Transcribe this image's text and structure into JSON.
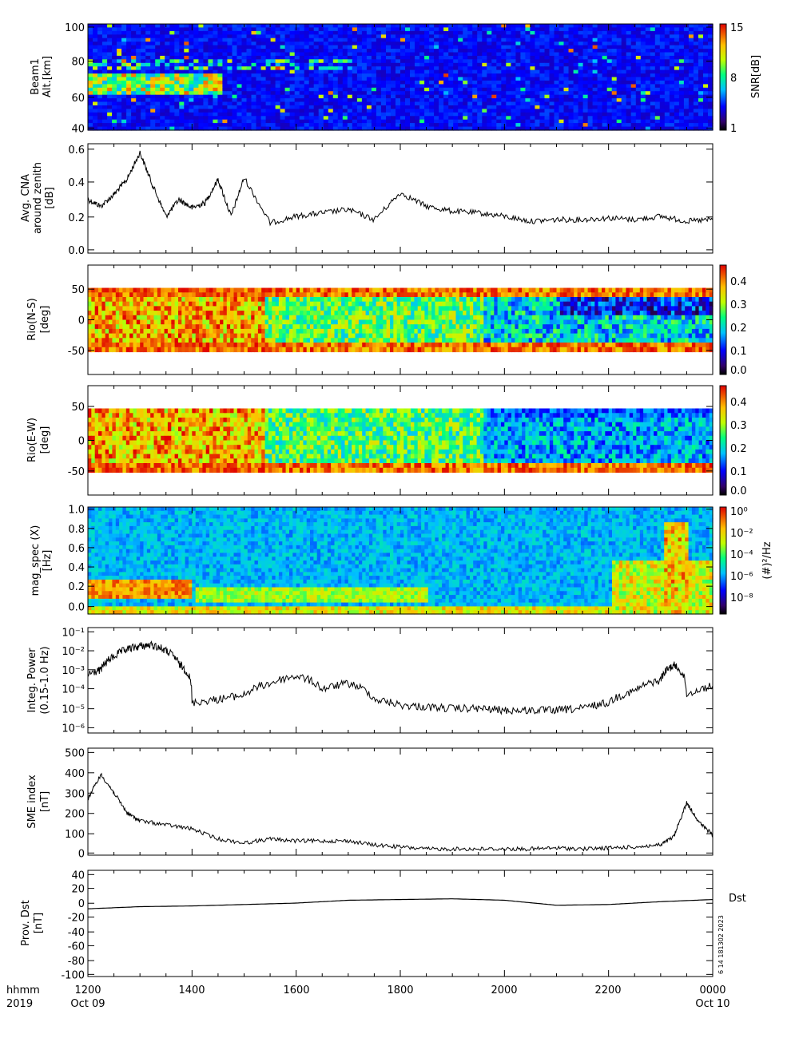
{
  "footer": {
    "time_label": "hhmm",
    "year_label": "2019",
    "start_date": "Oct 09",
    "end_date": "Oct 10",
    "x_ticks": [
      "1200",
      "1400",
      "1600",
      "1800",
      "2000",
      "2200",
      "0000"
    ],
    "stamp": "6 14 181302 2023"
  },
  "chart_data": [
    {
      "id": "beam1",
      "type": "heatmap",
      "ylabel": "Beam1",
      "ylabel2": "Alt.[km]",
      "ylim": [
        40,
        100
      ],
      "yticks": [
        "100",
        "80",
        "60",
        "40"
      ],
      "colorbar_label": "SNR[dB]",
      "colorbar_ticks": [
        "15",
        "8",
        "1"
      ],
      "clim": [
        1,
        15
      ]
    },
    {
      "id": "cna",
      "type": "line",
      "ylabel": "Avg. CNA",
      "ylabel2": "around zenith",
      "ylabel3": "[dB]",
      "ylim": [
        0,
        0.6
      ],
      "yticks": [
        "0.6",
        "0.4",
        "0.2",
        "0.0"
      ],
      "x_hours": [
        0,
        0.25,
        0.5,
        0.75,
        1.0,
        1.25,
        1.5,
        1.75,
        2.0,
        2.25,
        2.5,
        2.75,
        3.0,
        3.5,
        4.0,
        4.5,
        5.0,
        5.5,
        6.0,
        6.5,
        7.0,
        7.5,
        8.0,
        8.5,
        9.0,
        9.5,
        10.0,
        10.5,
        11.0,
        11.5,
        12.0
      ],
      "values": [
        0.3,
        0.26,
        0.33,
        0.42,
        0.58,
        0.38,
        0.2,
        0.3,
        0.25,
        0.28,
        0.42,
        0.2,
        0.43,
        0.16,
        0.2,
        0.22,
        0.24,
        0.18,
        0.34,
        0.26,
        0.23,
        0.22,
        0.2,
        0.17,
        0.18,
        0.18,
        0.19,
        0.18,
        0.2,
        0.17,
        0.18
      ]
    },
    {
      "id": "rio_ns",
      "type": "heatmap",
      "ylabel": "Rio(N-S)",
      "ylabel2": "[deg]",
      "ylim": [
        -90,
        90
      ],
      "yticks": [
        "50",
        "0",
        "-50"
      ],
      "colorbar_ticks": [
        "0.4",
        "0.3",
        "0.2",
        "0.1",
        "0.0"
      ],
      "clim": [
        0,
        0.45
      ]
    },
    {
      "id": "rio_ew",
      "type": "heatmap",
      "ylabel": "Rio(E-W)",
      "ylabel2": "[deg]",
      "ylim": [
        -90,
        90
      ],
      "yticks": [
        "50",
        "0",
        "-50"
      ],
      "colorbar_ticks": [
        "0.4",
        "0.3",
        "0.2",
        "0.1",
        "0.0"
      ],
      "clim": [
        0,
        0.45
      ]
    },
    {
      "id": "magspec",
      "type": "heatmap",
      "ylabel": "mag_spec (X)",
      "ylabel2": "[Hz]",
      "ylim": [
        0,
        1.0
      ],
      "yticks": [
        "1.0",
        "0.8",
        "0.6",
        "0.4",
        "0.2",
        "0.0"
      ],
      "colorbar_label": "(#)²/Hz",
      "colorbar_ticks": [
        "10⁰",
        "10⁻²",
        "10⁻⁴",
        "10⁻⁶",
        "10⁻⁸"
      ]
    },
    {
      "id": "power",
      "type": "line",
      "ylabel": "Integ. Power",
      "ylabel2": "(0.15-1.0 Hz)",
      "yscale": "log",
      "ylim": [
        1e-06,
        0.1
      ],
      "yticks": [
        "10⁻¹",
        "10⁻²",
        "10⁻³",
        "10⁻⁴",
        "10⁻⁵",
        "10⁻⁶"
      ],
      "x_hours": [
        0,
        0.25,
        0.5,
        0.75,
        1.0,
        1.25,
        1.5,
        1.75,
        2.0,
        2.5,
        3.0,
        3.5,
        4.0,
        4.5,
        5.0,
        5.5,
        6.0,
        6.5,
        7.0,
        7.5,
        8.0,
        8.5,
        9.0,
        9.5,
        10.0,
        10.5,
        11.0,
        11.25,
        11.5,
        12.0
      ],
      "values": [
        0.0006,
        0.001,
        0.005,
        0.012,
        0.018,
        0.02,
        0.01,
        0.002,
        2e-05,
        3e-05,
        5e-05,
        0.0002,
        0.0005,
        0.0001,
        0.0002,
        3e-05,
        1.5e-05,
        1.2e-05,
        1e-05,
        1e-05,
        8e-06,
        8e-06,
        8e-06,
        1e-05,
        2e-05,
        8e-05,
        0.0003,
        0.0018,
        5e-05,
        0.00015
      ]
    },
    {
      "id": "sme",
      "type": "line",
      "ylabel": "SME index",
      "ylabel2": "[nT]",
      "ylim": [
        0,
        500
      ],
      "yticks": [
        "500",
        "400",
        "300",
        "200",
        "100",
        "0"
      ],
      "x_hours": [
        0,
        0.25,
        0.5,
        0.75,
        1.0,
        1.5,
        2.0,
        2.5,
        3.0,
        3.5,
        4.0,
        4.5,
        5.0,
        5.5,
        6.0,
        6.5,
        7.0,
        7.5,
        8.0,
        8.5,
        9.0,
        9.5,
        10.0,
        10.5,
        11.0,
        11.25,
        11.5,
        11.75,
        12.0
      ],
      "values": [
        270,
        390,
        300,
        200,
        160,
        140,
        120,
        70,
        50,
        70,
        60,
        60,
        60,
        40,
        30,
        20,
        20,
        20,
        20,
        20,
        25,
        20,
        25,
        30,
        40,
        80,
        250,
        150,
        90
      ]
    },
    {
      "id": "dst",
      "type": "line",
      "ylabel": "Prov. Dst",
      "ylabel2": "[nT]",
      "legend_label": "Dst",
      "ylim": [
        -100,
        40
      ],
      "yticks": [
        "40",
        "20",
        "0",
        "-20",
        "-40",
        "-60",
        "-80",
        "-100"
      ],
      "x_hours": [
        0,
        1,
        2,
        3,
        4,
        5,
        6,
        7,
        8,
        9,
        10,
        11,
        12
      ],
      "values": [
        -8,
        -5,
        -4,
        -2,
        0,
        4,
        5,
        6,
        4,
        -3,
        -2,
        2,
        5
      ]
    }
  ]
}
